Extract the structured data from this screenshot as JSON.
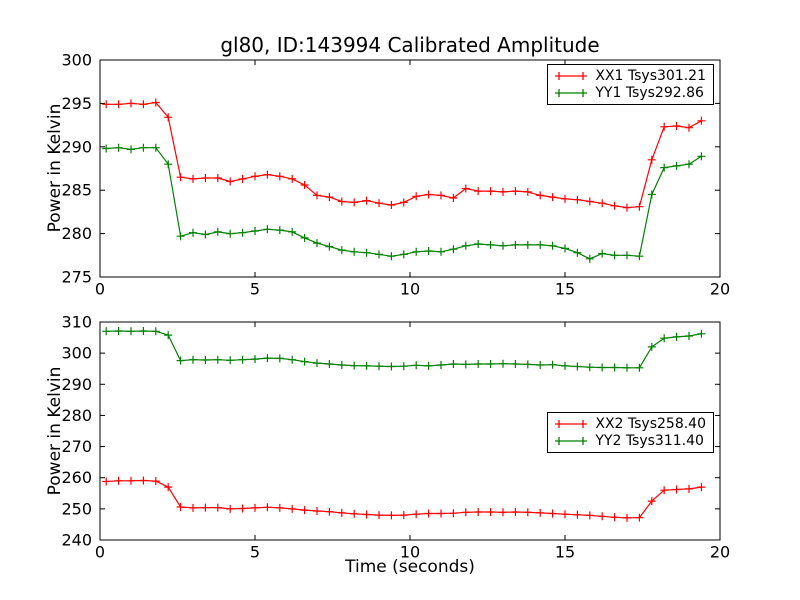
{
  "title": "gl80, ID:143994 Calibrated Amplitude",
  "xlabel": "Time (seconds)",
  "background_color": "#ffffff",
  "axes_color": "#000000",
  "chart_data": [
    {
      "type": "line",
      "ylabel": "Power in Kelvin",
      "xlim": [
        0,
        20
      ],
      "ylim": [
        275,
        300
      ],
      "xticks": [
        "0",
        "5",
        "10",
        "15",
        "20"
      ],
      "yticks": [
        "275",
        "280",
        "285",
        "290",
        "295",
        "300"
      ],
      "grid": false,
      "legend_position": "upper right",
      "marker": "+",
      "x": [
        0.2,
        0.6,
        1.0,
        1.4,
        1.8,
        2.2,
        2.6,
        3.0,
        3.4,
        3.8,
        4.2,
        4.6,
        5.0,
        5.4,
        5.8,
        6.2,
        6.6,
        7.0,
        7.4,
        7.8,
        8.2,
        8.6,
        9.0,
        9.4,
        9.8,
        10.2,
        10.6,
        11.0,
        11.4,
        11.8,
        12.2,
        12.6,
        13.0,
        13.4,
        13.8,
        14.2,
        14.6,
        15.0,
        15.4,
        15.8,
        16.2,
        16.6,
        17.0,
        17.4,
        17.8,
        18.2,
        18.6,
        19.0,
        19.4
      ],
      "series": [
        {
          "label": "XX1 Tsys301.21",
          "color": "#ff0000",
          "values": [
            294.9,
            294.9,
            295.0,
            294.9,
            295.1,
            293.4,
            286.5,
            286.3,
            286.4,
            286.4,
            286.0,
            286.3,
            286.6,
            286.8,
            286.6,
            286.3,
            285.6,
            284.4,
            284.2,
            283.7,
            283.6,
            283.8,
            283.5,
            283.3,
            283.6,
            284.3,
            284.5,
            284.4,
            284.1,
            285.2,
            284.9,
            284.9,
            284.8,
            284.9,
            284.8,
            284.4,
            284.2,
            284.0,
            283.9,
            283.7,
            283.5,
            283.2,
            283.0,
            283.1,
            288.5,
            292.3,
            292.4,
            292.2,
            293.0
          ]
        },
        {
          "label": "YY1 Tsys292.86",
          "color": "#008000",
          "values": [
            289.8,
            289.9,
            289.7,
            289.9,
            289.9,
            288.0,
            279.7,
            280.1,
            279.9,
            280.2,
            280.0,
            280.1,
            280.3,
            280.5,
            280.4,
            280.2,
            279.5,
            278.9,
            278.5,
            278.1,
            277.9,
            277.8,
            277.6,
            277.4,
            277.6,
            277.9,
            278.0,
            277.9,
            278.2,
            278.6,
            278.8,
            278.7,
            278.6,
            278.7,
            278.7,
            278.7,
            278.6,
            278.3,
            277.8,
            277.1,
            277.7,
            277.5,
            277.5,
            277.4,
            284.5,
            287.6,
            287.8,
            288.0,
            288.9
          ]
        }
      ]
    },
    {
      "type": "line",
      "ylabel": "Power in Kelvin",
      "xlim": [
        0,
        20
      ],
      "ylim": [
        240,
        310
      ],
      "xticks": [
        "0",
        "5",
        "10",
        "15",
        "20"
      ],
      "yticks": [
        "240",
        "250",
        "260",
        "270",
        "280",
        "290",
        "300",
        "310"
      ],
      "grid": false,
      "legend_position": "center right",
      "marker": "+",
      "x": [
        0.2,
        0.6,
        1.0,
        1.4,
        1.8,
        2.2,
        2.6,
        3.0,
        3.4,
        3.8,
        4.2,
        4.6,
        5.0,
        5.4,
        5.8,
        6.2,
        6.6,
        7.0,
        7.4,
        7.8,
        8.2,
        8.6,
        9.0,
        9.4,
        9.8,
        10.2,
        10.6,
        11.0,
        11.4,
        11.8,
        12.2,
        12.6,
        13.0,
        13.4,
        13.8,
        14.2,
        14.6,
        15.0,
        15.4,
        15.8,
        16.2,
        16.6,
        17.0,
        17.4,
        17.8,
        18.2,
        18.6,
        19.0,
        19.4
      ],
      "series": [
        {
          "label": "XX2 Tsys258.40",
          "color": "#ff0000",
          "values": [
            258.8,
            259.0,
            259.0,
            259.1,
            258.9,
            257.0,
            250.6,
            250.3,
            250.4,
            250.4,
            250.0,
            250.1,
            250.3,
            250.5,
            250.3,
            250.0,
            249.6,
            249.3,
            249.1,
            248.7,
            248.4,
            248.2,
            248.0,
            247.9,
            248.0,
            248.3,
            248.5,
            248.5,
            248.6,
            248.9,
            249.0,
            249.0,
            248.9,
            249.0,
            248.9,
            248.7,
            248.5,
            248.3,
            248.1,
            247.9,
            247.6,
            247.3,
            247.1,
            247.2,
            252.5,
            256.0,
            256.2,
            256.4,
            257.0
          ]
        },
        {
          "label": "YY2 Tsys311.40",
          "color": "#008000",
          "values": [
            307.0,
            307.1,
            307.0,
            307.1,
            307.0,
            305.8,
            297.6,
            297.9,
            297.8,
            297.9,
            297.7,
            297.9,
            298.1,
            298.4,
            298.3,
            297.9,
            297.3,
            296.8,
            296.5,
            296.2,
            296.0,
            295.9,
            295.8,
            295.7,
            295.8,
            296.1,
            295.9,
            296.2,
            296.5,
            296.4,
            296.5,
            296.5,
            296.6,
            296.5,
            296.4,
            296.2,
            296.3,
            295.9,
            295.7,
            295.5,
            295.4,
            295.4,
            295.3,
            295.3,
            302.0,
            304.8,
            305.2,
            305.5,
            306.2
          ]
        }
      ]
    }
  ]
}
